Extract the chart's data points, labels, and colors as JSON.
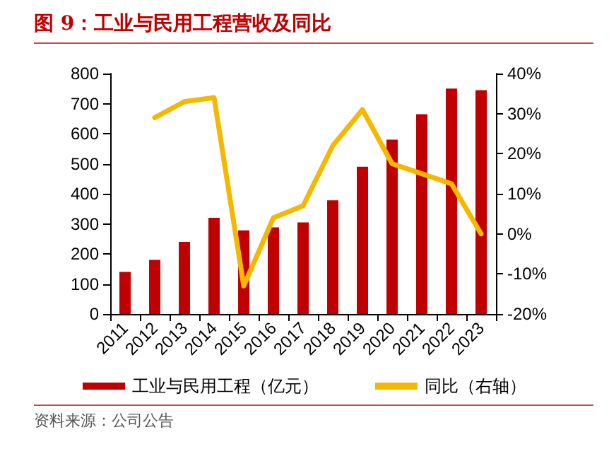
{
  "chart_data": {
    "type": "bar",
    "title": "图 9：工业与民用工程营收及同比",
    "categories": [
      "2011",
      "2012",
      "2013",
      "2014",
      "2015",
      "2016",
      "2017",
      "2018",
      "2019",
      "2020",
      "2021",
      "2022",
      "2023"
    ],
    "series": [
      {
        "name": "工业与民用工程（亿元）",
        "color": "#c00000",
        "values": [
          140,
          180,
          240,
          320,
          278,
          288,
          305,
          378,
          490,
          580,
          665,
          750,
          745
        ]
      },
      {
        "name": "同比（右轴）",
        "type": "line",
        "axis": "y2",
        "color": "#f5b800",
        "marker": "none",
        "values": [
          null,
          29,
          33,
          34,
          -13,
          4,
          7,
          22,
          31,
          17.5,
          15,
          12.5,
          0
        ]
      }
    ],
    "ylim": [
      0,
      800
    ],
    "yticks": [
      0,
      100,
      200,
      300,
      400,
      500,
      600,
      700,
      800
    ],
    "y2lim": [
      -20,
      40
    ],
    "y2ticks": [
      {
        "value": -20,
        "label": "-20%"
      },
      {
        "value": -10,
        "label": "-10%"
      },
      {
        "value": 0,
        "label": "0%"
      },
      {
        "value": 10,
        "label": "10%"
      },
      {
        "value": 20,
        "label": "20%"
      },
      {
        "value": 30,
        "label": "30%"
      },
      {
        "value": 40,
        "label": "40%"
      }
    ],
    "grid": false,
    "legend": "bottom",
    "annotations": [
      "资料来源：公司公告"
    ]
  }
}
